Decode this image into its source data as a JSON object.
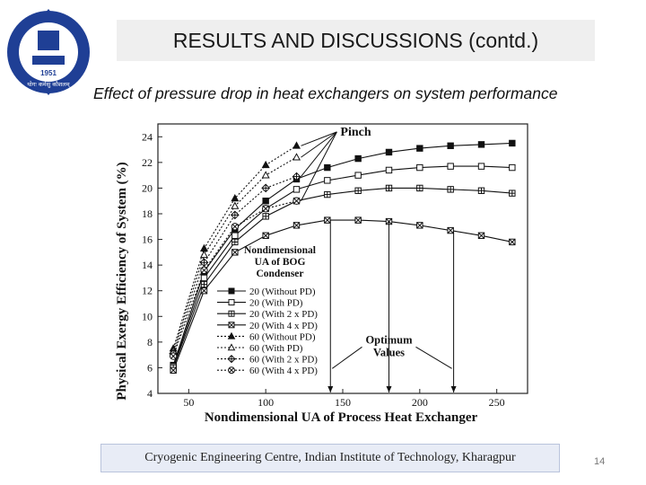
{
  "slide": {
    "title": "RESULTS AND DISCUSSIONS (contd.)",
    "subtitle": "Effect of pressure drop in heat exchangers on system performance",
    "footer": "Cryogenic Engineering Centre, Indian Institute of Technology, Kharagpur",
    "page_number": "14",
    "logo_year": "1951",
    "logo_motto": "योगः कर्मसु कौशलम्"
  },
  "colors": {
    "logo_blue": "#1f3f95",
    "title_bg": "#efefef",
    "footer_bg": "#e8ecf6"
  },
  "chart_data": {
    "type": "line",
    "title": "",
    "xlabel": "Nondimensional UA of Process Heat Exchanger",
    "ylabel": "Physical Exergy Efficiency of System (%)",
    "xlim": [
      30,
      270
    ],
    "ylim": [
      4,
      25
    ],
    "x_ticks": [
      50,
      100,
      150,
      200,
      250
    ],
    "y_ticks": [
      4,
      6,
      8,
      10,
      12,
      14,
      16,
      18,
      20,
      22,
      24
    ],
    "grid": false,
    "legend_title": [
      "Nondimensional",
      "UA of BOG",
      "Condenser"
    ],
    "legend_position": "center-left",
    "series": [
      {
        "name": "20 (Without PD)",
        "marker": "square-filled",
        "style": "solid",
        "x": [
          40,
          60,
          80,
          100,
          120,
          140,
          160,
          180,
          200,
          220,
          240,
          260
        ],
        "y": [
          6.2,
          13.5,
          16.8,
          19.0,
          20.7,
          21.6,
          22.3,
          22.8,
          23.1,
          23.3,
          23.4,
          23.5
        ]
      },
      {
        "name": "20 (With PD)",
        "marker": "square-open",
        "style": "solid",
        "x": [
          40,
          60,
          80,
          100,
          120,
          140,
          160,
          180,
          200,
          220,
          240,
          260
        ],
        "y": [
          6.1,
          13.0,
          16.3,
          18.4,
          19.9,
          20.6,
          21.0,
          21.4,
          21.6,
          21.7,
          21.7,
          21.6
        ]
      },
      {
        "name": "20 (With 2 x PD)",
        "marker": "square-cross",
        "style": "solid",
        "x": [
          40,
          60,
          80,
          100,
          120,
          140,
          160,
          180,
          200,
          220,
          240,
          260
        ],
        "y": [
          6.0,
          12.5,
          15.8,
          17.8,
          19.0,
          19.5,
          19.8,
          20.0,
          20.0,
          19.9,
          19.8,
          19.6
        ]
      },
      {
        "name": "20 (With 4 x PD)",
        "marker": "square-x",
        "style": "solid",
        "x": [
          40,
          60,
          80,
          100,
          120,
          140,
          160,
          180,
          200,
          220,
          240,
          260
        ],
        "y": [
          5.8,
          12.0,
          15.0,
          16.3,
          17.1,
          17.5,
          17.5,
          17.4,
          17.1,
          16.7,
          16.3,
          15.8
        ]
      },
      {
        "name": "60 (Without PD)",
        "marker": "triangle-filled",
        "style": "dotted",
        "x": [
          40,
          60,
          80,
          100,
          120
        ],
        "y": [
          7.5,
          15.3,
          19.2,
          21.8,
          23.3
        ]
      },
      {
        "name": "60 (With PD)",
        "marker": "triangle-open",
        "style": "dotted",
        "x": [
          40,
          60,
          80,
          100,
          120
        ],
        "y": [
          7.3,
          14.8,
          18.6,
          21.0,
          22.4
        ]
      },
      {
        "name": "60 (With 2 x PD)",
        "marker": "diamond-cross",
        "style": "dotted",
        "x": [
          40,
          60,
          80,
          100,
          120
        ],
        "y": [
          7.1,
          14.2,
          17.9,
          20.0,
          20.9
        ]
      },
      {
        "name": "60 (With 4 x PD)",
        "marker": "circle-x",
        "style": "dotted",
        "x": [
          40,
          60,
          80,
          100,
          120
        ],
        "y": [
          6.9,
          13.6,
          17.0,
          18.4,
          19.0
        ]
      }
    ],
    "annotations": {
      "pinch": {
        "text": "Pinch",
        "target_x": 120,
        "target_ys": [
          23.3,
          22.4,
          20.9,
          19.0
        ],
        "label_x": 145,
        "label_y": 24.1
      },
      "optimum": {
        "text": [
          "Optimum",
          "Values"
        ],
        "target_xs": [
          142,
          180,
          222
        ],
        "label_x": 180,
        "label_y": 7.9
      }
    }
  }
}
